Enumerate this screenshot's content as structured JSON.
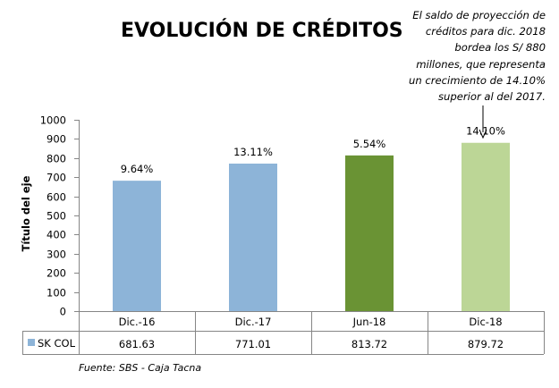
{
  "chart_data": {
    "type": "bar",
    "title": "EVOLUCIÓN DE CRÉDITOS",
    "ylabel": "Título del eje",
    "xlabel": "",
    "ylim": [
      0,
      1000
    ],
    "yticks": [
      0,
      100,
      200,
      300,
      400,
      500,
      600,
      700,
      800,
      900,
      1000
    ],
    "grid": false,
    "legend": "data-table",
    "categories": [
      "Dic.-16",
      "Dic.-17",
      "Jun-18",
      "Dic-18"
    ],
    "series": [
      {
        "name": "SK COL",
        "values": [
          681.63,
          771.01,
          813.72,
          879.72
        ],
        "value_labels": [
          "681.63",
          "771.01",
          "813.72",
          "879.72"
        ],
        "growth_labels": [
          "9.64%",
          "13.11%",
          "5.54%",
          "14.10%"
        ],
        "bar_colors": [
          "#8db4d8",
          "#8db4d8",
          "#6a9334",
          "#bcd696"
        ]
      }
    ],
    "legend_color": "#8db4d8",
    "annotation": "El saldo de proyección de créditos para dic. 2018 bordea los S/ 880 millones, que representa un crecimiento de 14.10% superior al del 2017.",
    "annotation_lines": [
      "El saldo de proyección de",
      "créditos para dic. 2018",
      "bordea los S/ 880",
      "millones, que representa",
      "un crecimiento de 14.10%",
      "superior al del 2017."
    ],
    "source": "Fuente: SBS - Caja Tacna"
  }
}
